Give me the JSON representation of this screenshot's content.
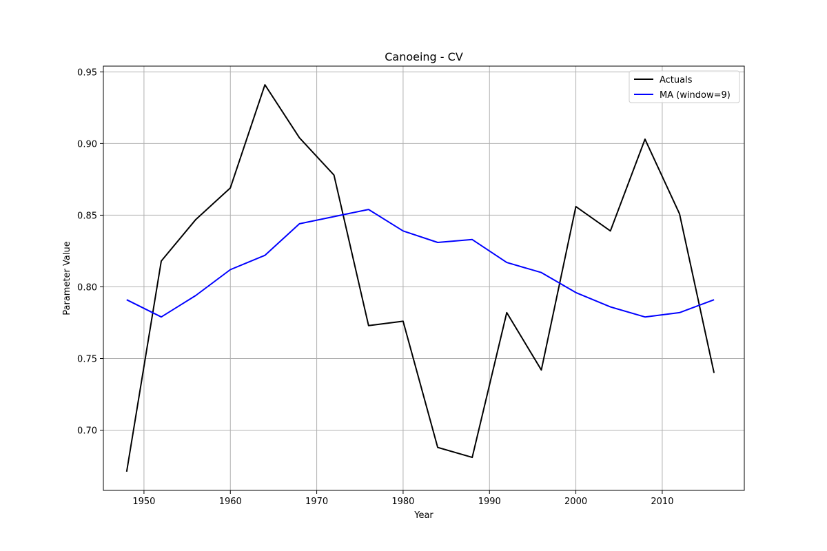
{
  "chart_data": {
    "type": "line",
    "title": "Canoeing - CV",
    "xlabel": "Year",
    "ylabel": "Parameter Value",
    "xlim": [
      1945.3,
      2019.5
    ],
    "ylim": [
      0.658,
      0.954
    ],
    "x_ticks": [
      1950,
      1960,
      1970,
      1980,
      1990,
      2000,
      2010
    ],
    "x_tick_labels": [
      "1950",
      "1960",
      "1970",
      "1980",
      "1990",
      "2000",
      "2010"
    ],
    "y_ticks": [
      0.7,
      0.75,
      0.8,
      0.85,
      0.9,
      0.95
    ],
    "y_tick_labels": [
      "0.70",
      "0.75",
      "0.80",
      "0.85",
      "0.90",
      "0.95"
    ],
    "grid": true,
    "legend_position": "top-right",
    "x": [
      1948,
      1952,
      1956,
      1960,
      1964,
      1968,
      1972,
      1976,
      1980,
      1984,
      1988,
      1992,
      1996,
      2000,
      2004,
      2008,
      2012,
      2016
    ],
    "series": [
      {
        "name": "Actuals",
        "color": "#000000",
        "values": [
          0.671,
          0.818,
          0.847,
          0.869,
          0.941,
          0.904,
          0.878,
          0.773,
          0.776,
          0.688,
          0.681,
          0.782,
          0.742,
          0.856,
          0.839,
          0.903,
          0.851,
          0.74
        ]
      },
      {
        "name": "MA (window=9)",
        "color": "#0000ff",
        "values": [
          0.791,
          0.779,
          0.794,
          0.812,
          0.822,
          0.844,
          0.849,
          0.854,
          0.839,
          0.831,
          0.833,
          0.817,
          0.81,
          0.796,
          0.786,
          0.779,
          0.782,
          0.791
        ]
      }
    ]
  }
}
